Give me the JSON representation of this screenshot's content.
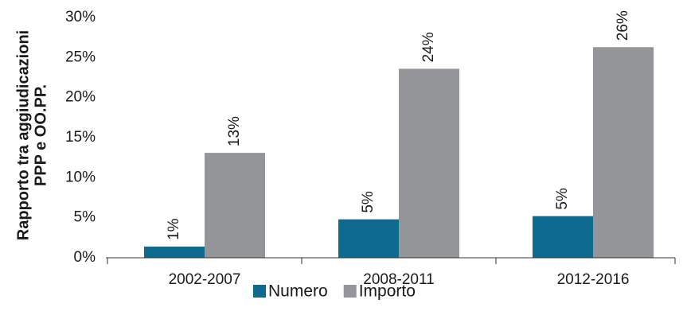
{
  "chart_data": {
    "type": "bar",
    "ylabel": [
      "Rapporto tra aggiudicazioni",
      "PPP e OO.PP."
    ],
    "categories": [
      "2002-2007",
      "2008-2011",
      "2012-2016"
    ],
    "series": [
      {
        "name": "Numero",
        "color": "#0f6a8f",
        "values": [
          1.4,
          4.8,
          5.2
        ],
        "value_labels": [
          "1%",
          "5%",
          "5%"
        ]
      },
      {
        "name": "Importo",
        "color": "#939598",
        "values": [
          13.1,
          23.6,
          26.3
        ],
        "value_labels": [
          "13%",
          "24%",
          "26%"
        ]
      }
    ],
    "ylim": [
      0,
      30
    ],
    "yticks": [
      {
        "value": 0,
        "label": "0%"
      },
      {
        "value": 5,
        "label": "5%"
      },
      {
        "value": 10,
        "label": "10%"
      },
      {
        "value": 15,
        "label": "15%"
      },
      {
        "value": 20,
        "label": "20%"
      },
      {
        "value": 25,
        "label": "25%"
      },
      {
        "value": 30,
        "label": "30%"
      }
    ],
    "grid": false,
    "legend": "bottom"
  }
}
